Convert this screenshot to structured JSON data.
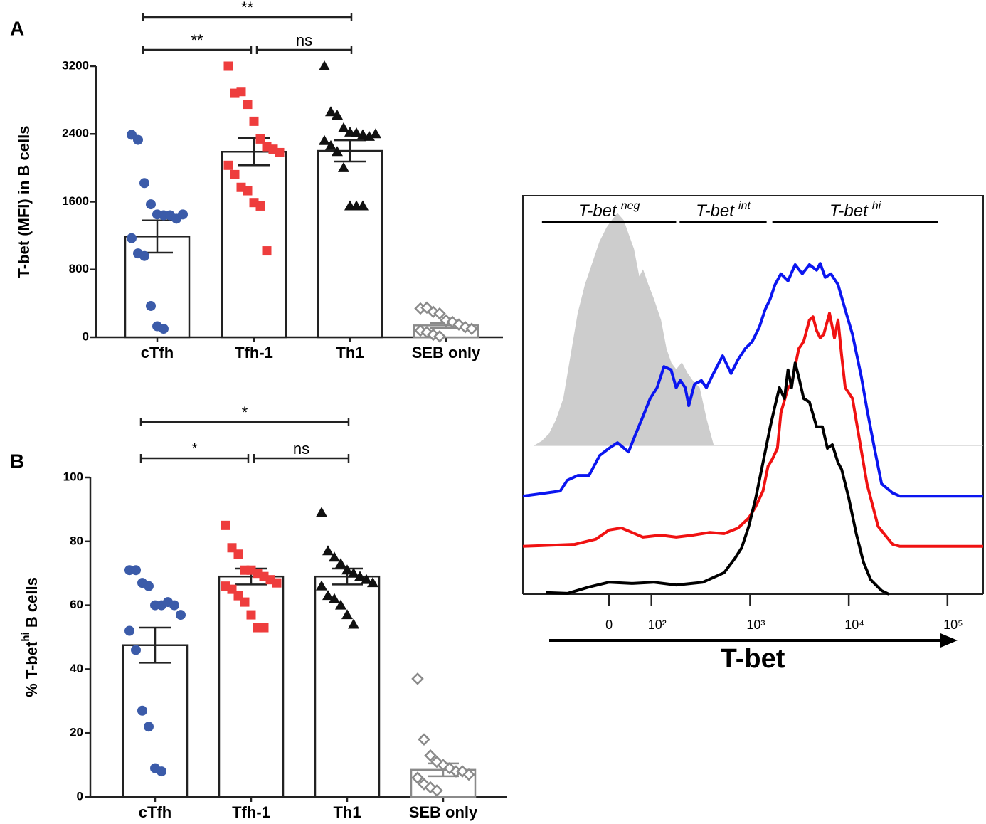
{
  "chart_data": [
    {
      "type": "bar",
      "panel": "A",
      "ylabel": {
        "text": "T-bet (MFI) in B cells"
      },
      "categories": [
        "cTfh",
        "Tfh-1",
        "Th1",
        "SEB only"
      ],
      "values": [
        1190,
        2190,
        2200,
        140
      ],
      "errors": [
        190,
        160,
        125,
        30
      ],
      "points": [
        [
          2390,
          2330,
          1820,
          1570,
          1450,
          1440,
          1440,
          1400,
          1450,
          1170,
          990,
          960,
          370,
          130,
          100
        ],
        [
          3200,
          2880,
          2900,
          2750,
          2550,
          2340,
          2250,
          2220,
          2180,
          2030,
          1920,
          1770,
          1730,
          1590,
          1550,
          1020
        ],
        [
          3200,
          2660,
          2620,
          2470,
          2420,
          2410,
          2390,
          2370,
          2400,
          2320,
          2260,
          2190,
          2000,
          1550,
          1550,
          1550
        ],
        [
          340,
          350,
          300,
          280,
          200,
          180,
          150,
          120,
          100,
          80,
          60,
          30,
          10
        ]
      ],
      "colors": [
        "#3b5ba9",
        "#ee3d3d",
        "#111111",
        "#8a8a8a"
      ],
      "markers": [
        "circle",
        "square",
        "triangle",
        "diamond"
      ],
      "bar_edge_colors": [
        "#222222",
        "#222222",
        "#222222",
        "#8a8a8a"
      ],
      "ylim": [
        0,
        3200
      ],
      "yticks": [
        0,
        800,
        1600,
        2400,
        3200
      ],
      "brackets": [
        {
          "text": "**",
          "from": "cTfh",
          "to": "Th1"
        },
        {
          "text": "**",
          "from": "cTfh",
          "to": "Tfh-1"
        },
        {
          "text": "ns",
          "from": "Tfh-1",
          "to": "Th1"
        }
      ]
    },
    {
      "type": "bar",
      "panel": "B",
      "ylabel": {
        "text": "% T-bet",
        "sup": "hi",
        "rest": " B cells"
      },
      "categories": [
        "cTfh",
        "Tfh-1",
        "Th1",
        "SEB only"
      ],
      "values": [
        47.5,
        69,
        69,
        8.5
      ],
      "errors": [
        5.5,
        2.5,
        2.5,
        2
      ],
      "points": [
        [
          71,
          71,
          67,
          66,
          60,
          60,
          61,
          60,
          57,
          52,
          46,
          27,
          22,
          9,
          8
        ],
        [
          85,
          78,
          76,
          71,
          71,
          70,
          69,
          68,
          67,
          66,
          65,
          63,
          61,
          57,
          53,
          53
        ],
        [
          89,
          77,
          75,
          73,
          71,
          70,
          69,
          68,
          67,
          66,
          63,
          62,
          60,
          57,
          54
        ],
        [
          37,
          18,
          13,
          11,
          10,
          9,
          8,
          8,
          7,
          6,
          4,
          3,
          2
        ]
      ],
      "colors": [
        "#3b5ba9",
        "#ee3d3d",
        "#111111",
        "#8a8a8a"
      ],
      "markers": [
        "circle",
        "square",
        "triangle",
        "diamond"
      ],
      "bar_edge_colors": [
        "#222222",
        "#222222",
        "#222222",
        "#8a8a8a"
      ],
      "ylim": [
        0,
        100
      ],
      "yticks": [
        0,
        20,
        40,
        60,
        80,
        100
      ],
      "brackets": [
        {
          "text": "*",
          "from": "cTfh",
          "to": "Th1"
        },
        {
          "text": "*",
          "from": "cTfh",
          "to": "Tfh-1"
        },
        {
          "text": "ns",
          "from": "Tfh-1",
          "to": "Th1"
        }
      ]
    },
    {
      "type": "line",
      "xlabel": "T-bet",
      "xscale": "biexponential",
      "xlim": [
        -203,
        230000
      ],
      "ylim": [
        0,
        100
      ],
      "xticks": [
        0,
        {
          "value": 100,
          "label": "10²"
        },
        {
          "value": 1000,
          "label": "10³"
        },
        {
          "value": 10000,
          "label": "10⁴"
        },
        {
          "value": 100000,
          "label": "10⁵"
        }
      ],
      "gates": [
        {
          "text": "T-bet",
          "sup": "neg",
          "from": -158,
          "to": 178
        },
        {
          "text": "T-bet",
          "sup": "int",
          "from": 193,
          "to": 1470
        },
        {
          "text": "T-bet",
          "sup": "hi",
          "from": 1680,
          "to": 80200
        }
      ],
      "series": [
        {
          "color": "#c8c8c8",
          "filled": true,
          "x": [
            -175,
            -158,
            -141,
            -124,
            -107,
            -90,
            -73,
            -56,
            -39,
            -22,
            -5,
            7,
            20,
            34,
            46,
            58,
            71,
            80,
            92,
            105,
            124,
            141,
            158,
            178,
            203,
            231,
            260,
            306,
            361,
            425,
            230000
          ],
          "values": [
            37.3,
            38.4,
            40.2,
            43.8,
            49.1,
            59.8,
            70.5,
            77.7,
            83,
            88.4,
            92,
            93.8,
            95.5,
            93.8,
            90.2,
            86.6,
            79.5,
            81.3,
            77.7,
            74.1,
            68.8,
            61.6,
            58,
            56.3,
            58,
            55.4,
            53.6,
            51.8,
            43.8,
            37.3,
            37.3
          ]
        },
        {
          "color": "#0b16f0",
          "filled": false,
          "x": [
            -203,
            -115,
            -98,
            -73,
            -47,
            -22,
            0,
            20,
            46,
            63,
            80,
            97,
            114,
            134,
            158,
            178,
            196,
            220,
            239,
            273,
            321,
            361,
            425,
            527,
            641,
            756,
            891,
            1050,
            1240,
            1420,
            1600,
            1790,
            2050,
            2420,
            2860,
            3380,
            3990,
            4720,
            5130,
            5770,
            6590,
            7780,
            9200,
            10900,
            13400,
            15300,
            18200,
            21500,
            27800,
            33000,
            230000
          ],
          "values": [
            24.6,
            25.9,
            28.6,
            29.8,
            29.8,
            34.8,
            36.6,
            38,
            35.7,
            40.2,
            44.6,
            49.1,
            51.8,
            57.1,
            56.3,
            51.8,
            53.6,
            51.8,
            47.3,
            52.7,
            53.6,
            51.8,
            55.4,
            59.8,
            55.4,
            58.9,
            61.6,
            63.4,
            67,
            71.4,
            74.1,
            77.7,
            80.4,
            78.6,
            82.7,
            80.4,
            82.7,
            81.3,
            83,
            79.5,
            80.4,
            77.7,
            71.4,
            65.2,
            54.5,
            46.4,
            36.6,
            27.7,
            25.4,
            24.6,
            24.6
          ]
        },
        {
          "color": "#f01212",
          "filled": false,
          "x": [
            -203,
            -81,
            -31,
            0,
            29,
            54,
            80,
            124,
            178,
            260,
            392,
            545,
            756,
            968,
            1140,
            1350,
            1520,
            1680,
            1890,
            2050,
            2420,
            2630,
            3110,
            3490,
            3990,
            4340,
            4720,
            5130,
            5570,
            6370,
            7160,
            7780,
            8470,
            9200,
            10900,
            12900,
            15300,
            19800,
            27800,
            33000,
            230000
          ],
          "values": [
            12,
            12.5,
            13.8,
            16.1,
            16.6,
            15.5,
            14.3,
            14.8,
            14.3,
            14.8,
            15.5,
            15.2,
            16.6,
            19.1,
            22,
            25.9,
            32.1,
            33.9,
            36.6,
            45.5,
            51.8,
            52.7,
            61.6,
            63.4,
            68.8,
            69.6,
            66.1,
            64.3,
            65.2,
            70.5,
            64.3,
            68.8,
            59.8,
            51.8,
            49.1,
            38.4,
            27.7,
            17,
            12.5,
            12,
            12
          ]
        },
        {
          "color": "#000000",
          "filled": false,
          "x": [
            -149,
            -98,
            -47,
            0,
            54,
            105,
            178,
            332,
            545,
            697,
            820,
            968,
            1140,
            1350,
            1600,
            1790,
            1980,
            2230,
            2420,
            2630,
            2860,
            3110,
            3490,
            3990,
            4720,
            5400,
            6070,
            6810,
            7780,
            8470,
            10000,
            11900,
            14100,
            16700,
            21500,
            25500
          ],
          "values": [
            0.4,
            0.2,
            1.8,
            3,
            2.7,
            3,
            2.3,
            3,
            5.4,
            8.9,
            11.6,
            17,
            24.1,
            33,
            42,
            47.3,
            51.8,
            49.1,
            56.3,
            51.8,
            58,
            54.5,
            49.1,
            48.2,
            42,
            42,
            36.6,
            37.5,
            33,
            31.3,
            24.1,
            15.2,
            8,
            3.6,
            0.9,
            0
          ]
        }
      ]
    }
  ]
}
